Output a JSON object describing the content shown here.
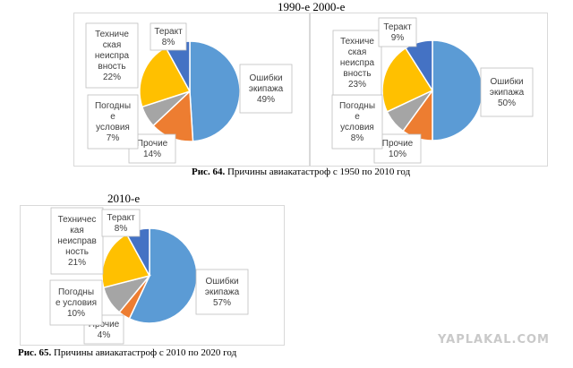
{
  "header": {
    "decade_titles": "1990-е 2000-е"
  },
  "figures": {
    "fig64_caption_bold": "Рис. 64.",
    "fig64_caption_text": " Причины авиакатастроф с 1950 по 2010 год",
    "fig65_caption_bold": "Рис. 65.",
    "fig65_caption_text": " Причины авиакатастроф с 2010 по 2020 год"
  },
  "watermark": "YAPLAKAL.COM",
  "colors": {
    "crew": "#5b9bd5",
    "other": "#ed7d31",
    "weather": "#a5a5a5",
    "technical": "#ffc000",
    "terror": "#4472c4",
    "callout_border": "#bfbfbf"
  },
  "chart_data": [
    {
      "type": "pie",
      "title": "",
      "slices": [
        {
          "label": "Ошибки экипажа",
          "value": 49,
          "display": "49%",
          "lines": [
            "Ошибки",
            "экипажа",
            "49%"
          ],
          "color_key": "crew"
        },
        {
          "label": "Прочие",
          "value": 14,
          "display": "14%",
          "lines": [
            "Прочие",
            "14%"
          ],
          "color_key": "other"
        },
        {
          "label": "Погодные условия",
          "value": 7,
          "display": "7%",
          "lines": [
            "Погодны",
            "е",
            "условия",
            "7%"
          ],
          "color_key": "weather"
        },
        {
          "label": "Техническая неисправность",
          "value": 22,
          "display": "22%",
          "lines": [
            "Техниче",
            "ская",
            "неиспра",
            "вность",
            "22%"
          ],
          "color_key": "technical"
        },
        {
          "label": "Теракт",
          "value": 8,
          "display": "8%",
          "lines": [
            "Теракт",
            "8%"
          ],
          "color_key": "terror"
        }
      ]
    },
    {
      "type": "pie",
      "title": "",
      "slices": [
        {
          "label": "Ошибки экипажа",
          "value": 50,
          "display": "50%",
          "lines": [
            "Ошибки",
            "экипажа",
            "50%"
          ],
          "color_key": "crew"
        },
        {
          "label": "Прочие",
          "value": 10,
          "display": "10%",
          "lines": [
            "Прочие",
            "10%"
          ],
          "color_key": "other"
        },
        {
          "label": "Погодные условия",
          "value": 8,
          "display": "8%",
          "lines": [
            "Погодны",
            "е",
            "условия",
            "8%"
          ],
          "color_key": "weather"
        },
        {
          "label": "Техническая неисправность",
          "value": 23,
          "display": "23%",
          "lines": [
            "Техниче",
            "ская",
            "неиспра",
            "вность",
            "23%"
          ],
          "color_key": "technical"
        },
        {
          "label": "Теракт",
          "value": 9,
          "display": "9%",
          "lines": [
            "Теракт",
            "9%"
          ],
          "color_key": "terror"
        }
      ]
    },
    {
      "type": "pie",
      "title": "2010-е",
      "slices": [
        {
          "label": "Ошибки экипажа",
          "value": 57,
          "display": "57%",
          "lines": [
            "Ошибки",
            "экипажа",
            "57%"
          ],
          "color_key": "crew"
        },
        {
          "label": "Прочие",
          "value": 4,
          "display": "4%",
          "lines": [
            "Прочие",
            "4%"
          ],
          "color_key": "other"
        },
        {
          "label": "Погодные условия",
          "value": 10,
          "display": "10%",
          "lines": [
            "Погодны",
            "е условия",
            "10%"
          ],
          "color_key": "weather"
        },
        {
          "label": "Техническая неисправность",
          "value": 21,
          "display": "21%",
          "lines": [
            "Техничес",
            "кая",
            "неисправ",
            "ность",
            "21%"
          ],
          "color_key": "technical"
        },
        {
          "label": "Теракт",
          "value": 8,
          "display": "8%",
          "lines": [
            "Теракт",
            "8%"
          ],
          "color_key": "terror"
        }
      ]
    }
  ]
}
